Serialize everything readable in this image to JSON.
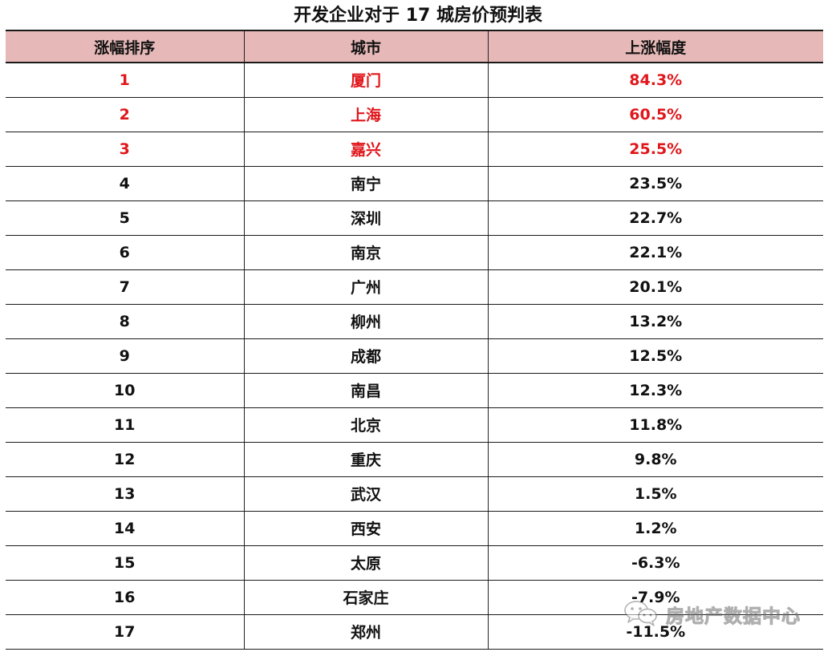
{
  "title": "开发企业对于 17 城房价预判表",
  "table": {
    "headers": [
      "涨幅排序",
      "城市",
      "上涨幅度"
    ],
    "rows": [
      {
        "rank": "1",
        "city": "厦门",
        "increase": "84.3%",
        "highlight": true
      },
      {
        "rank": "2",
        "city": "上海",
        "increase": "60.5%",
        "highlight": true
      },
      {
        "rank": "3",
        "city": "嘉兴",
        "increase": "25.5%",
        "highlight": true
      },
      {
        "rank": "4",
        "city": "南宁",
        "increase": "23.5%",
        "highlight": false
      },
      {
        "rank": "5",
        "city": "深圳",
        "increase": "22.7%",
        "highlight": false
      },
      {
        "rank": "6",
        "city": "南京",
        "increase": "22.1%",
        "highlight": false
      },
      {
        "rank": "7",
        "city": "广州",
        "increase": "20.1%",
        "highlight": false
      },
      {
        "rank": "8",
        "city": "柳州",
        "increase": "13.2%",
        "highlight": false
      },
      {
        "rank": "9",
        "city": "成都",
        "increase": "12.5%",
        "highlight": false
      },
      {
        "rank": "10",
        "city": "南昌",
        "increase": "12.3%",
        "highlight": false
      },
      {
        "rank": "11",
        "city": "北京",
        "increase": "11.8%",
        "highlight": false
      },
      {
        "rank": "12",
        "city": "重庆",
        "increase": "9.8%",
        "highlight": false
      },
      {
        "rank": "13",
        "city": "武汉",
        "increase": "1.5%",
        "highlight": false
      },
      {
        "rank": "14",
        "city": "西安",
        "increase": "1.2%",
        "highlight": false
      },
      {
        "rank": "15",
        "city": "太原",
        "increase": "-6.3%",
        "highlight": false
      },
      {
        "rank": "16",
        "city": "石家庄",
        "increase": "-7.9%",
        "highlight": false
      },
      {
        "rank": "17",
        "city": "郑州",
        "increase": "-11.5%",
        "highlight": false
      }
    ]
  },
  "watermark": {
    "text": "房地产数据中心",
    "icon": "wechat-icon"
  },
  "colors": {
    "header_bg": "#e6b9b8",
    "highlight_text": "#e0161b",
    "text": "#111111"
  }
}
